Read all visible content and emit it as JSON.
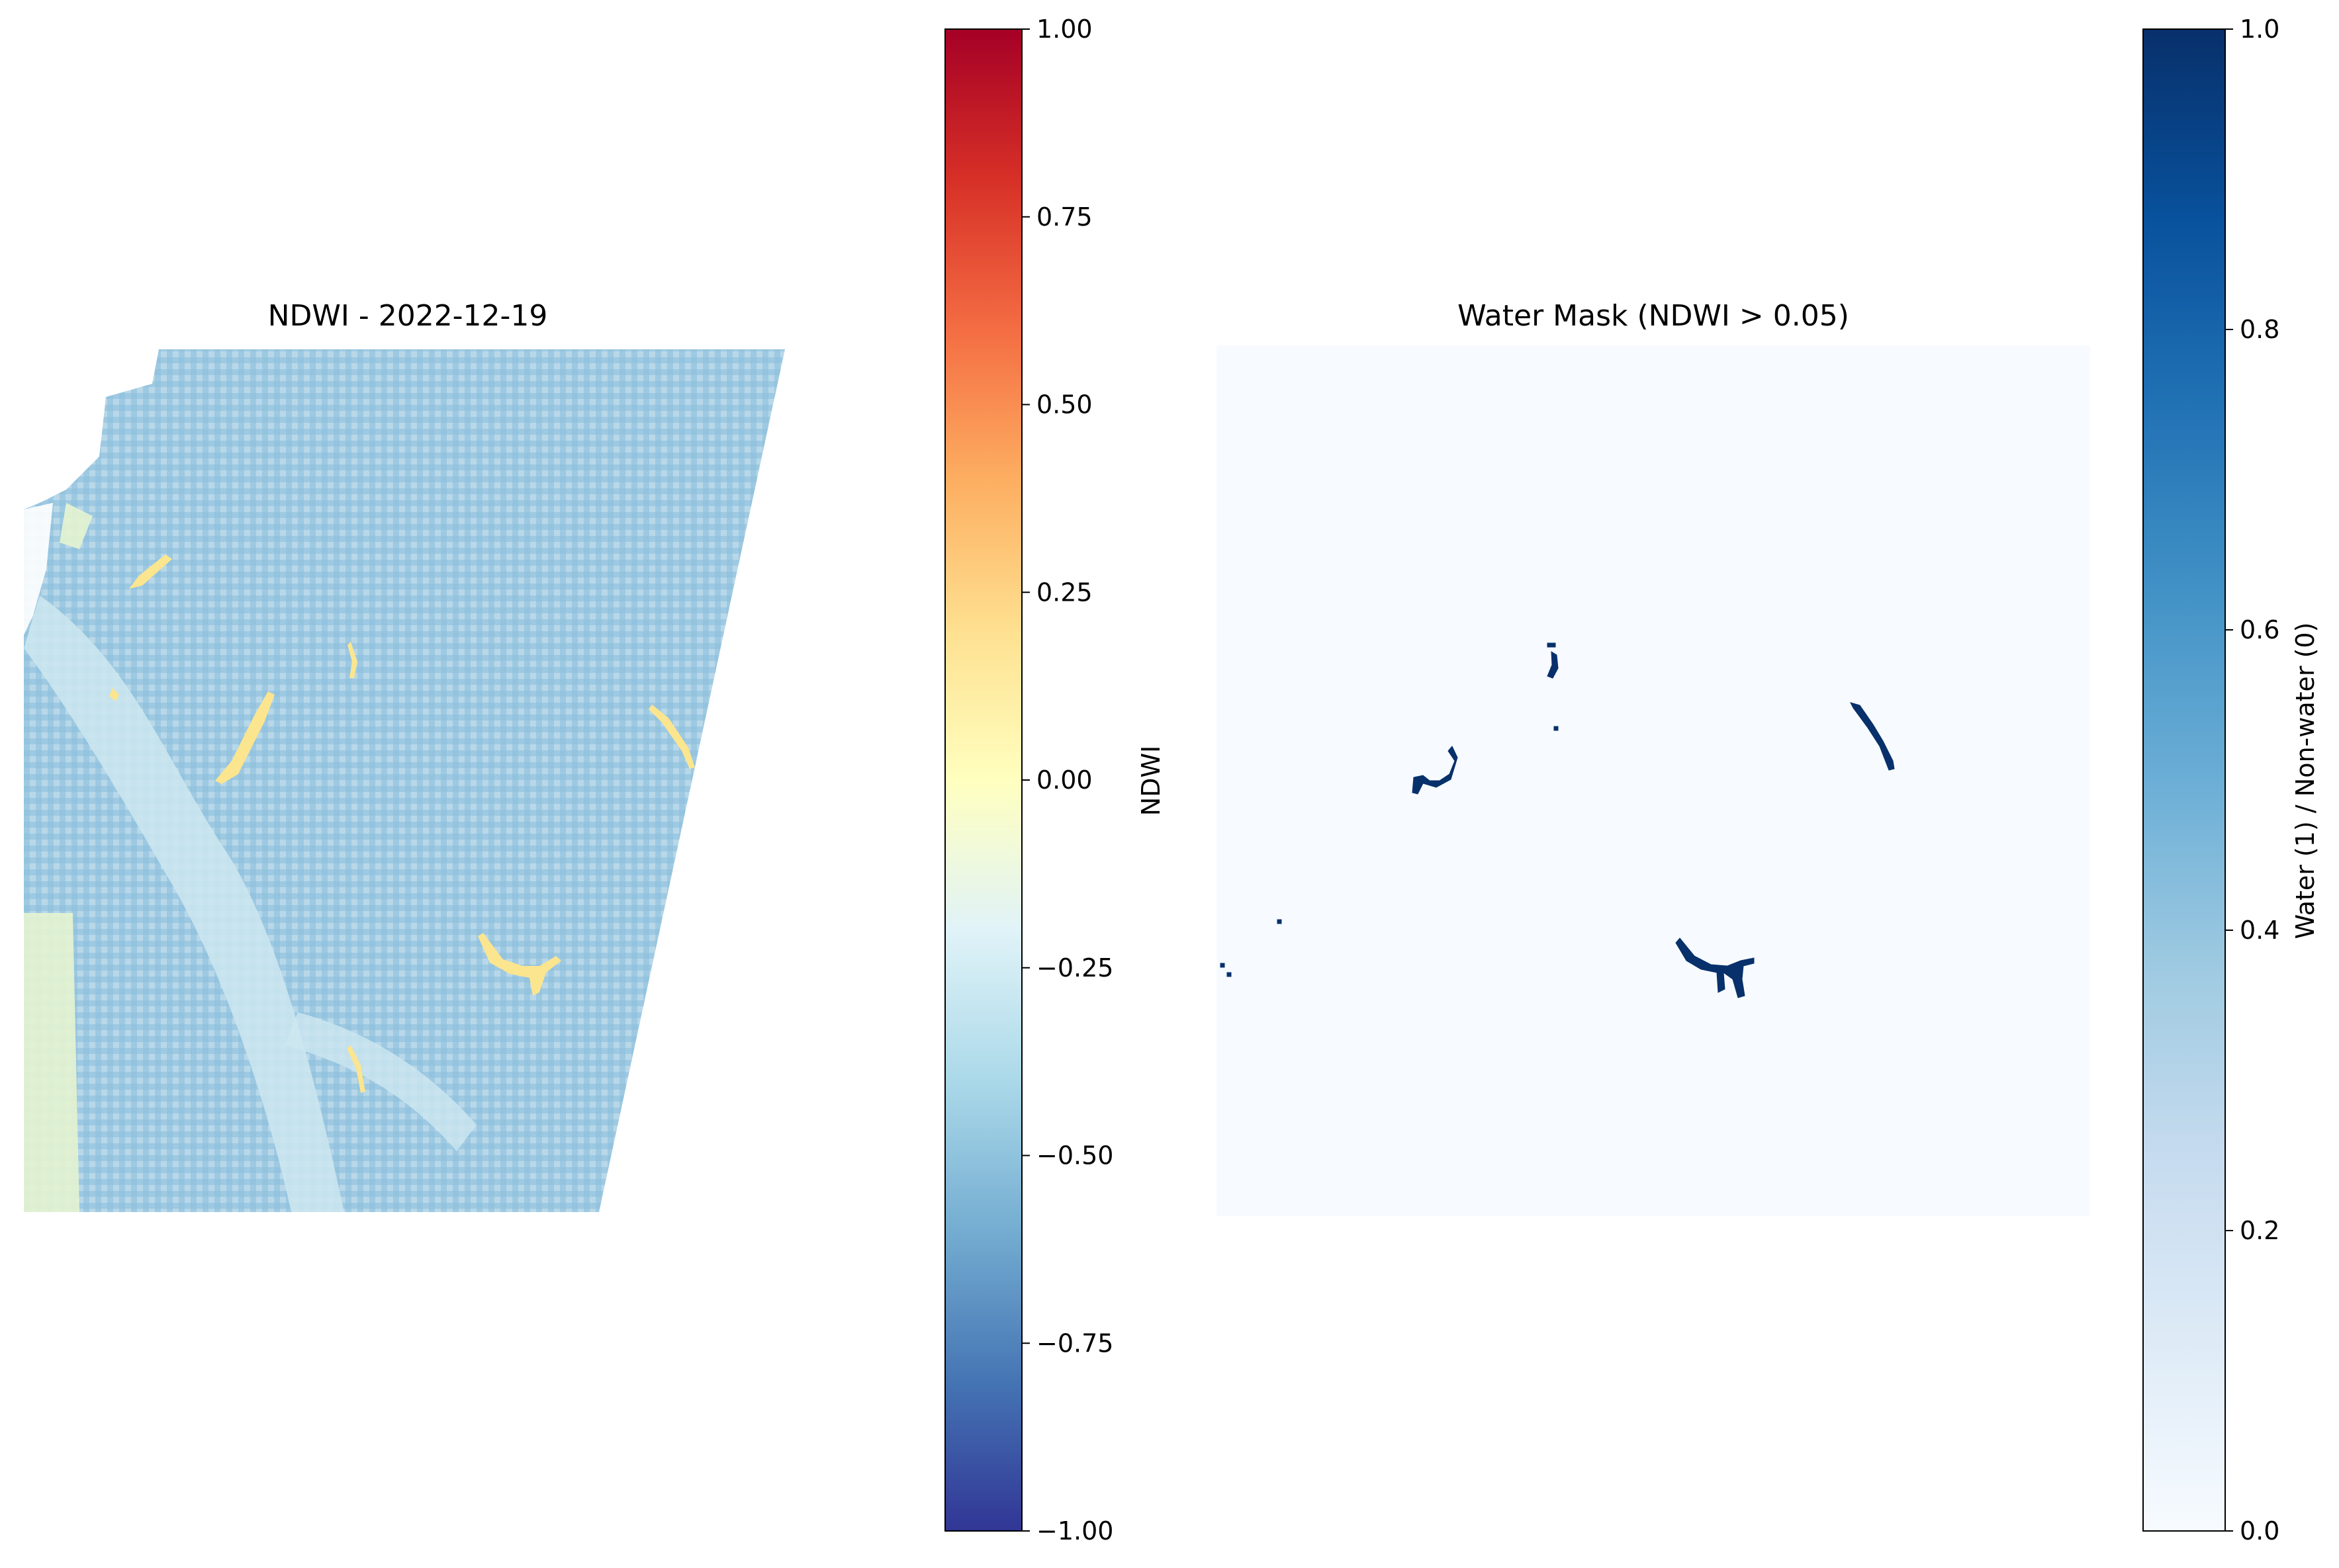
{
  "chart_data": [
    {
      "type": "heatmap",
      "title": "NDWI - 2022-12-19",
      "colormap": "RdYlBu_r",
      "colorbar": {
        "label": "NDWI",
        "range": [
          -1.0,
          1.0
        ],
        "ticks": [
          -1.0,
          -0.75,
          -0.5,
          -0.25,
          0.0,
          0.25,
          0.5,
          0.75,
          1.0
        ],
        "tick_labels": [
          "−1.00",
          "−0.75",
          "−0.50",
          "−0.25",
          "0.00",
          "0.25",
          "0.50",
          "0.75",
          "1.00"
        ]
      },
      "axes": "off",
      "typical_value": -0.45,
      "water_features_value": 0.15,
      "no_data_region": "white triangle on right edge and patches at top-left"
    },
    {
      "type": "heatmap",
      "title": "Water Mask (NDWI > 0.05)",
      "colormap": "Blues",
      "colorbar": {
        "label": "Water (1) / Non-water (0)",
        "range": [
          0.0,
          1.0
        ],
        "ticks": [
          0.0,
          0.2,
          0.4,
          0.6,
          0.8,
          1.0
        ],
        "tick_labels": [
          "0.0",
          "0.2",
          "0.4",
          "0.6",
          "0.8",
          "1.0"
        ]
      },
      "axes": "off",
      "background_value": 0,
      "water_value": 1
    }
  ],
  "colors": {
    "rdylbu": [
      "#313695",
      "#4575b4",
      "#74add1",
      "#abd9e9",
      "#e0f3f8",
      "#ffffbf",
      "#fee090",
      "#fdae61",
      "#f46d43",
      "#d73027",
      "#a50026"
    ],
    "blues": [
      "#f7fbff",
      "#deebf7",
      "#c6dbef",
      "#9ecae1",
      "#6baed6",
      "#4292c6",
      "#2171b5",
      "#08519c",
      "#08306b"
    ],
    "land": "#9ec9e2",
    "land_light": "#cde7f0",
    "water_ndwi": "#fbe58f",
    "mask_bg": "#f7fbff",
    "mask_water": "#08306b"
  }
}
